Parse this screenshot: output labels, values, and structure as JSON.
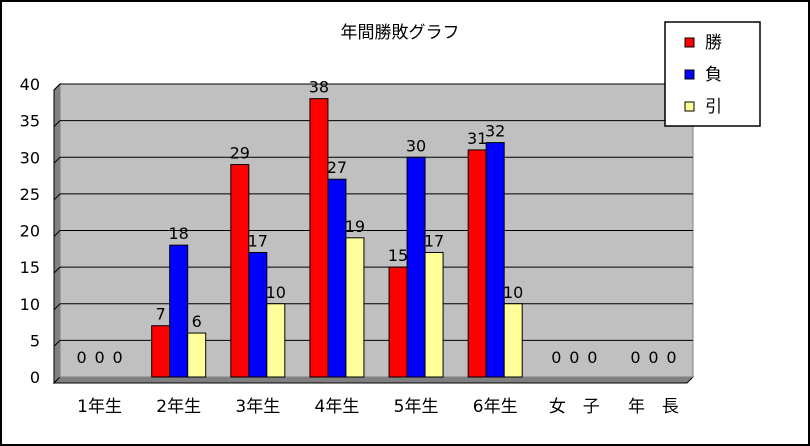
{
  "chart_data": {
    "type": "bar",
    "title": "年間勝敗グラフ",
    "categories": [
      "1年生",
      "2年生",
      "3年生",
      "4年生",
      "5年生",
      "6年生",
      "女　子",
      "年　長"
    ],
    "series": [
      {
        "name": "勝",
        "color": "#ff0000",
        "values": [
          0,
          7,
          29,
          38,
          15,
          31,
          0,
          0
        ]
      },
      {
        "name": "負",
        "color": "#0000ff",
        "values": [
          0,
          18,
          17,
          27,
          30,
          32,
          0,
          0
        ]
      },
      {
        "name": "引",
        "color": "#ffff99",
        "values": [
          0,
          6,
          10,
          19,
          17,
          10,
          0,
          0
        ]
      }
    ],
    "ylim": [
      0,
      40
    ],
    "yticks": [
      0,
      5,
      10,
      15,
      20,
      25,
      30,
      35,
      40
    ],
    "grid": true,
    "plot_background": "#c0c0c0",
    "legend_position": "top-right",
    "data_labels": true
  }
}
